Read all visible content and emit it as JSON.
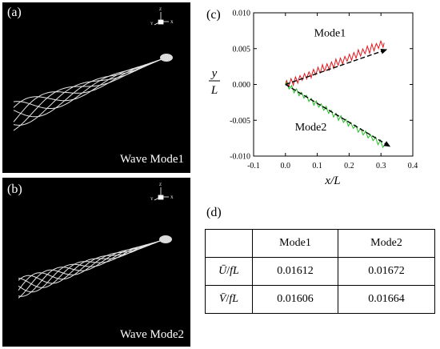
{
  "panel_a": {
    "label": "(a)",
    "caption": "Wave Mode1"
  },
  "panel_b": {
    "label": "(b)",
    "caption": "Wave Mode2"
  },
  "axes_glyph": {
    "z": "Z",
    "y": "Y",
    "x": "X"
  },
  "panel_c": {
    "label": "(c)"
  },
  "panel_d": {
    "label": "(d)"
  },
  "chart_data": {
    "type": "line",
    "xlabel": "x/L",
    "ylabel_num": "y",
    "ylabel_den": "L",
    "xlim": [
      -0.1,
      0.4
    ],
    "ylim": [
      -0.01,
      0.01
    ],
    "xticks": [
      "-0.1",
      "0.0",
      "0.1",
      "0.2",
      "0.3",
      "0.4"
    ],
    "yticks": [
      "0.010",
      "0.005",
      "0.000",
      "-0.005",
      "-0.010"
    ],
    "grid": false,
    "annotations": [
      {
        "text": "Mode1",
        "x": 0.09,
        "y": 0.0067
      },
      {
        "text": "Mode2",
        "x": 0.03,
        "y": -0.0064
      }
    ],
    "series": [
      {
        "name": "Mode1",
        "color": "#e8141a",
        "start": [
          0.0,
          0.0
        ],
        "end": [
          0.31,
          0.0058
        ],
        "amp": 0.0006,
        "waves": 22
      },
      {
        "name": "Mode2",
        "color": "#1fbf1f",
        "start": [
          0.0,
          0.0
        ],
        "end": [
          0.31,
          -0.0085
        ],
        "amp": 0.00045,
        "waves": 20
      }
    ],
    "arrows": [
      {
        "series": "Mode1",
        "from": [
          0.0,
          0.0
        ],
        "to": [
          0.32,
          0.0049
        ]
      },
      {
        "series": "Mode2",
        "from": [
          0.0,
          0.0
        ],
        "to": [
          0.33,
          -0.0087
        ]
      }
    ]
  },
  "table": {
    "headers": [
      "",
      "Mode1",
      "Mode2"
    ],
    "rows": [
      {
        "symbol": "Ū",
        "den": "fL",
        "values": [
          "0.01612",
          "0.01672"
        ]
      },
      {
        "symbol": "V̄",
        "den": "fL",
        "values": [
          "0.01606",
          "0.01664"
        ]
      }
    ]
  }
}
